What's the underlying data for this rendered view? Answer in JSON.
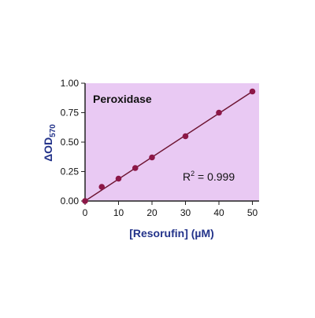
{
  "chart_data": {
    "type": "scatter",
    "annotation": "Peroxidase",
    "r2_label": {
      "base": "R",
      "sup": "2",
      "rest": " = 0.999"
    },
    "y_label": {
      "base": "ΔOD",
      "sub": "570"
    },
    "x_label": "[Resorufin] (µM)",
    "x": [
      0,
      5,
      10,
      15,
      20,
      30,
      40,
      50
    ],
    "values": [
      0,
      0.12,
      0.19,
      0.28,
      0.37,
      0.55,
      0.75,
      0.93
    ],
    "color": "#8c1747",
    "trendline": {
      "x": [
        0,
        50
      ],
      "values": [
        0,
        0.93
      ],
      "color": "#6e1533"
    },
    "plot_background": "#e9c9f3",
    "xlim": [
      0,
      52
    ],
    "ylim": [
      0,
      1
    ],
    "xticks": [
      0,
      10,
      20,
      30,
      40,
      50
    ],
    "yticks": [
      {
        "value": 0,
        "label": "0.00"
      },
      {
        "value": 0.25,
        "label": "0.25"
      },
      {
        "value": 0.5,
        "label": "0.50"
      },
      {
        "value": 0.75,
        "label": "0.75"
      },
      {
        "value": 1,
        "label": "1.00"
      }
    ]
  }
}
